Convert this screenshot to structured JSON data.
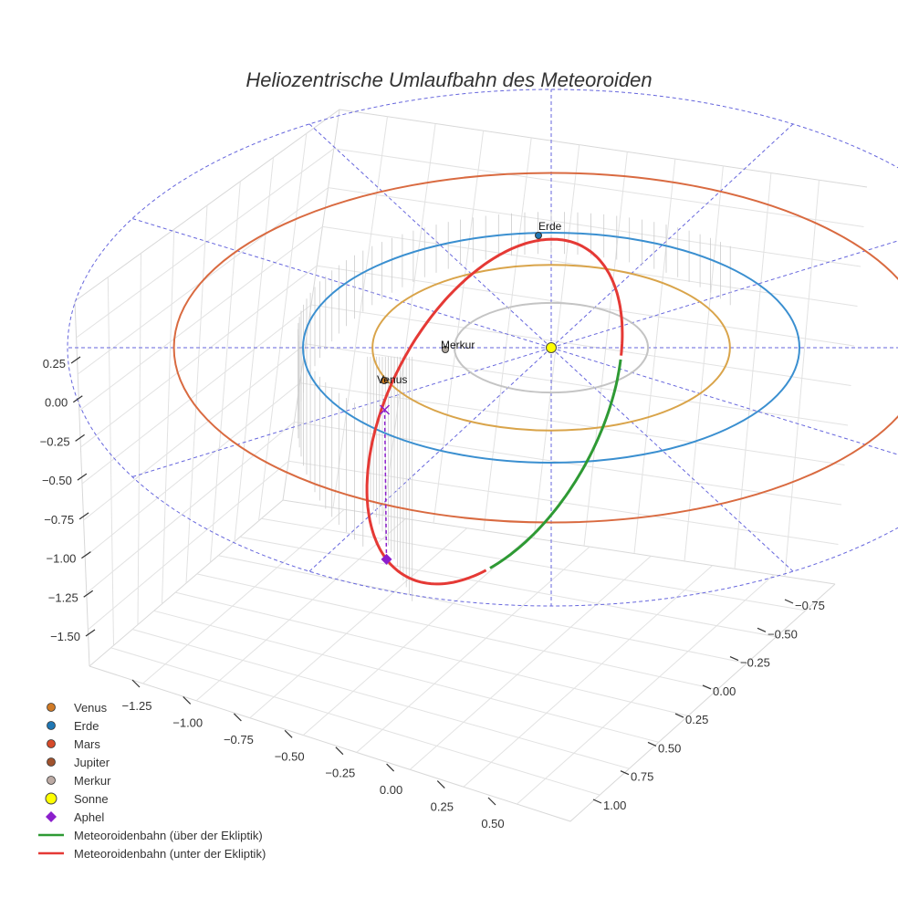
{
  "chart_data": {
    "type": "scatter3d",
    "title": "Heliozentrische Umlaufbahn des Meteoroiden",
    "axes": {
      "x": {
        "ticks": [
          "−1.25",
          "−1.00",
          "−0.75",
          "−0.50",
          "−0.25",
          "0.00",
          "0.25",
          "0.50"
        ]
      },
      "y": {
        "ticks": [
          "−0.75",
          "−0.50",
          "−0.25",
          "0.00",
          "0.25",
          "0.50",
          "0.75",
          "1.00"
        ]
      },
      "z": {
        "ticks": [
          "0.25",
          "0.00",
          "−0.25",
          "−0.50",
          "−0.75",
          "−1.00",
          "−1.25",
          "−1.50"
        ]
      },
      "grid": true
    },
    "orbits": [
      {
        "name": "Merkur",
        "a": 0.39,
        "color": "#c4c4c4"
      },
      {
        "name": "Venus",
        "a": 0.72,
        "color": "#d9a44a"
      },
      {
        "name": "Erde",
        "a": 1.0,
        "color": "#3a8fd0"
      },
      {
        "name": "Mars",
        "a": 1.52,
        "color": "#d96a40"
      }
    ],
    "point_labels": [
      {
        "name": "Erde",
        "text": "Erde",
        "color": "#1f77b4"
      },
      {
        "name": "Merkur",
        "text": "Merkur",
        "color": "#b0a8a0"
      },
      {
        "name": "Venus",
        "text": "Venus",
        "color": "#cc7a1f"
      },
      {
        "name": "Sonne",
        "text": "",
        "color": "#ffff00"
      }
    ],
    "series": [
      {
        "name": "Meteoroidenbahn (über der Ekliptik)",
        "color": "#2e9a34"
      },
      {
        "name": "Meteoroidenbahn (unter der Ekliptik)",
        "color": "#e53935"
      }
    ],
    "aphel": {
      "name": "Aphel",
      "color": "#8b1fcc",
      "z": -1.4
    },
    "legend": {
      "position": "bottom-left",
      "entries": [
        {
          "label": "Venus",
          "kind": "dot",
          "color": "#d07a26"
        },
        {
          "label": "Erde",
          "kind": "dot",
          "color": "#1f77b4"
        },
        {
          "label": "Mars",
          "kind": "dot",
          "color": "#d64a2a"
        },
        {
          "label": "Jupiter",
          "kind": "dot",
          "color": "#a0522d"
        },
        {
          "label": "Merkur",
          "kind": "dot",
          "color": "#bcaaa4"
        },
        {
          "label": "Sonne",
          "kind": "bigdot",
          "color": "#ffff00"
        },
        {
          "label": "Aphel",
          "kind": "diamond",
          "color": "#8b1fcc"
        },
        {
          "label": "Meteoroidenbahn (über der Ekliptik)",
          "kind": "line",
          "color": "#2e9a34"
        },
        {
          "label": "Meteoroidenbahn (unter der Ekliptik)",
          "kind": "line",
          "color": "#e53935"
        }
      ]
    }
  }
}
